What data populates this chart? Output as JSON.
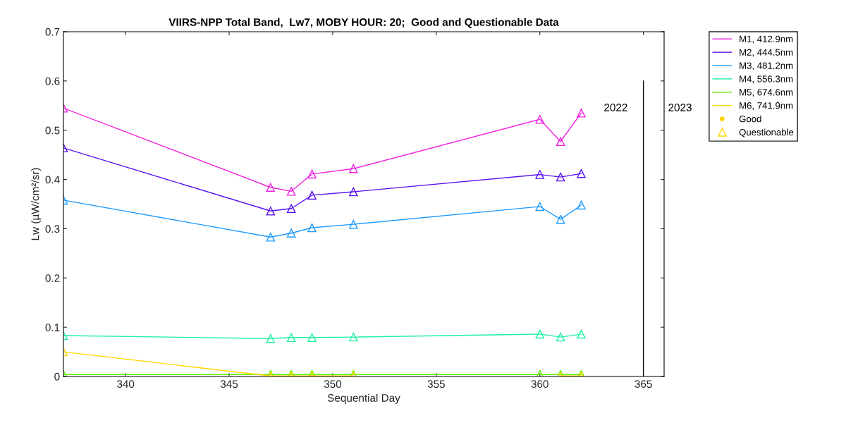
{
  "chart_data": {
    "type": "line",
    "title": "VIIRS-NPP Total Band,  Lw7, MOBY HOUR: 20;  Good and Questionable Data",
    "xlabel": "Sequential Day",
    "ylabel": "Lw (µW/cm²/sr)",
    "x": [
      337,
      347,
      348,
      349,
      351,
      360,
      361,
      362
    ],
    "series": [
      {
        "name": "M1, 412.9nm",
        "color": "#f020e0",
        "marker": "triangle",
        "values": [
          0.545,
          0.384,
          0.376,
          0.411,
          0.422,
          0.522,
          0.477,
          0.535
        ]
      },
      {
        "name": "M2, 444.5nm",
        "color": "#5a10f0",
        "marker": "triangle",
        "values": [
          0.464,
          0.336,
          0.341,
          0.368,
          0.375,
          0.41,
          0.405,
          0.412
        ]
      },
      {
        "name": "M3, 481.2nm",
        "color": "#1e9bff",
        "marker": "triangle",
        "values": [
          0.358,
          0.283,
          0.291,
          0.302,
          0.309,
          0.345,
          0.319,
          0.348
        ]
      },
      {
        "name": "M4, 556.3nm",
        "color": "#20f0a0",
        "marker": "triangle",
        "values": [
          0.083,
          0.077,
          0.079,
          0.079,
          0.08,
          0.086,
          0.08,
          0.086
        ]
      },
      {
        "name": "M5, 674.6nm",
        "color": "#60f000",
        "marker": "triangle",
        "values": [
          0.004,
          0.004,
          0.004,
          0.004,
          0.004,
          0.004,
          0.004,
          0.004
        ]
      },
      {
        "name": "M6, 741.9nm",
        "color": "#ffd700",
        "marker": "triangle",
        "values": [
          0.05,
          0.001,
          0.001,
          0.001,
          0.001,
          null,
          0.001,
          0.001
        ]
      },
      {
        "type": "line",
        "color": "#000000",
        "marker": "none",
        "x": [
          365,
          365
        ],
        "values": [
          0,
          0.6
        ]
      },
      {
        "type": "scatter",
        "name": "Good",
        "color": "#ffd700",
        "marker": "point",
        "values": [
          null,
          null,
          null,
          null,
          null,
          null,
          null,
          null
        ]
      },
      {
        "type": "scatter",
        "name": "Questionable",
        "color": "#ffd700",
        "marker": "triangle",
        "values": [
          null,
          null,
          null,
          null,
          null,
          null,
          null,
          null
        ]
      }
    ],
    "annotations": [
      "2022",
      "2023"
    ],
    "xlim": [
      337,
      366
    ],
    "ylim": [
      0,
      0.7
    ],
    "xticks": [
      340,
      345,
      350,
      355,
      360,
      365
    ],
    "yticks": [
      0,
      0.1,
      0.2,
      0.3,
      0.4,
      0.5,
      0.6,
      0.7
    ],
    "grid": false,
    "legend": "top right"
  }
}
